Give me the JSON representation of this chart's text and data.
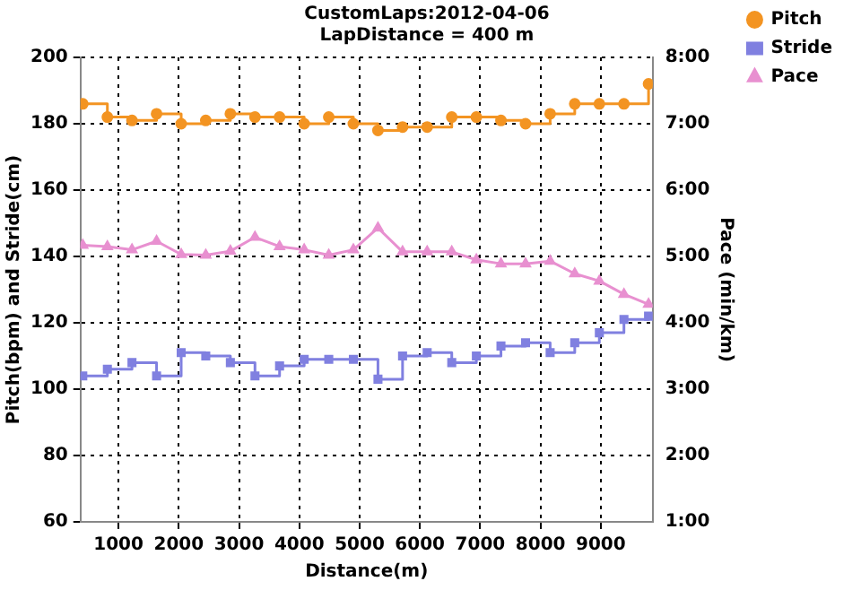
{
  "chart_data": {
    "type": "step",
    "title": "CustomLaps:2012-04-06",
    "subtitle": "LapDistance = 400 m",
    "xlabel": "Distance(m)",
    "ylabel": "Pitch(bpm) and Stride(cm)",
    "y2label": "Pace (min/km)",
    "x": [
      408,
      816,
      1224,
      1632,
      2040,
      2448,
      2856,
      3264,
      3672,
      4080,
      4488,
      4896,
      5304,
      5712,
      6120,
      6528,
      6936,
      7344,
      7752,
      8160,
      8568,
      8976,
      9384,
      9792
    ],
    "series": [
      {
        "name": "Pitch",
        "marker": "circle",
        "color": "#f39422",
        "values": [
          186,
          182,
          181,
          183,
          180,
          181,
          183,
          182,
          182,
          180,
          182,
          180,
          178,
          179,
          179,
          182,
          182,
          181,
          180,
          183,
          186,
          186,
          186,
          192
        ]
      },
      {
        "name": "Stride",
        "marker": "square",
        "color": "#8080e0",
        "values": [
          104,
          106,
          108,
          104,
          111,
          110,
          108,
          104,
          107,
          109,
          109,
          109,
          103,
          110,
          111,
          108,
          110,
          113,
          114,
          111,
          114,
          117,
          121,
          122
        ]
      },
      {
        "name": "Pace",
        "type": "line",
        "marker": "triangle",
        "axis": "y2",
        "color": "#e890d0",
        "values": [
          5.17,
          5.15,
          5.1,
          5.23,
          5.03,
          5.02,
          5.08,
          5.29,
          5.15,
          5.1,
          5.02,
          5.1,
          5.43,
          5.07,
          5.07,
          5.07,
          4.95,
          4.89,
          4.89,
          4.93,
          4.74,
          4.63,
          4.43,
          4.28
        ]
      }
    ],
    "xlim": [
      370,
      9860
    ],
    "xticks": [
      1000,
      2000,
      3000,
      4000,
      5000,
      6000,
      7000,
      8000,
      9000
    ],
    "ylim": [
      60,
      200
    ],
    "yticks": [
      60,
      80,
      100,
      120,
      140,
      160,
      180,
      200
    ],
    "y2lim": [
      1,
      8
    ],
    "y2ticks": [
      {
        "value": 1,
        "label": "1:00"
      },
      {
        "value": 2,
        "label": "2:00"
      },
      {
        "value": 3,
        "label": "3:00"
      },
      {
        "value": 4,
        "label": "4:00"
      },
      {
        "value": 5,
        "label": "5:00"
      },
      {
        "value": 6,
        "label": "6:00"
      },
      {
        "value": 7,
        "label": "7:00"
      },
      {
        "value": 8,
        "label": "8:00"
      }
    ],
    "grid": true,
    "legend": "top right",
    "line_style": "solid"
  }
}
